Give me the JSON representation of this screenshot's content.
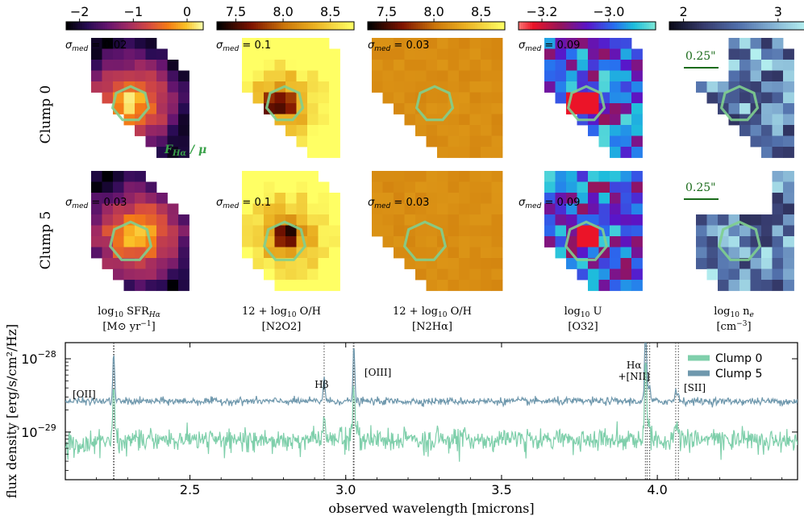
{
  "figure": {
    "row_labels": [
      "Clump 0",
      "Clump 5"
    ],
    "flux_annotation": "F",
    "flux_annotation_sub": "Hα",
    "flux_annotation_tail": " / μ",
    "scale_bar_label": "0.25\"",
    "colorbars": [
      {
        "ticks": [
          {
            "v": -2,
            "t": "−2"
          },
          {
            "v": -1,
            "t": "−1"
          },
          {
            "v": 0,
            "t": "0"
          }
        ],
        "range": [
          -2.25,
          0.3
        ],
        "cmap": "inferno"
      },
      {
        "ticks": [
          {
            "v": 7.5,
            "t": "7.5"
          },
          {
            "v": 8.0,
            "t": "8.0"
          },
          {
            "v": 8.5,
            "t": "8.5"
          }
        ],
        "range": [
          7.3,
          8.75
        ],
        "cmap": "afmhot"
      },
      {
        "ticks": [
          {
            "v": 7.5,
            "t": "7.5"
          },
          {
            "v": 8.0,
            "t": "8.0"
          },
          {
            "v": 8.5,
            "t": "8.5"
          }
        ],
        "range": [
          7.3,
          8.75
        ],
        "cmap": "afmhot"
      },
      {
        "ticks": [
          {
            "v": -3.2,
            "t": "−3.2"
          },
          {
            "v": -3.0,
            "t": "−3.0"
          }
        ],
        "range": [
          -3.27,
          -2.86
        ],
        "cmap": "rainbow"
      },
      {
        "ticks": [
          {
            "v": 2,
            "t": "2"
          },
          {
            "v": 3,
            "t": "3"
          }
        ],
        "range": [
          1.85,
          3.3
        ],
        "cmap": "ice"
      }
    ],
    "sigma_med": [
      [
        "0.02",
        "0.1",
        "0.03",
        "0.09",
        ""
      ],
      [
        "0.03",
        "0.1",
        "0.03",
        "0.09",
        ""
      ]
    ],
    "sigma_label": "σ",
    "sigma_sub": "med",
    "sigma_eq": " = ",
    "column_labels": [
      {
        "l1": "log",
        "l1sub": "10",
        "l1tail": " SFR",
        "l1sub2": "Hα",
        "l2": "[M⊙ yr",
        "l2sup": "−1",
        "l2tail": "]"
      },
      {
        "l1": "12 + log",
        "l1sub": "10",
        "l1tail": " O/H",
        "l1sub2": "",
        "l2": "[N2O2]",
        "l2sup": "",
        "l2tail": ""
      },
      {
        "l1": "12 + log",
        "l1sub": "10",
        "l1tail": " O/H",
        "l1sub2": "",
        "l2": "[N2Hα]",
        "l2sup": "",
        "l2tail": ""
      },
      {
        "l1": "log",
        "l1sub": "10",
        "l1tail": " U",
        "l1sub2": "",
        "l2": "[O32]",
        "l2sup": "",
        "l2tail": ""
      },
      {
        "l1": "log",
        "l1sub": "10",
        "l1tail": " n",
        "l1sub2": "e",
        "l2": "[cm",
        "l2sup": "−3",
        "l2tail": "]"
      }
    ]
  },
  "chart_data": {
    "type": "line",
    "xlabel": "observed wavelength [microns]",
    "ylabel": "flux density [erg/s/cm²/Hz]",
    "xlim": [
      2.1,
      4.45
    ],
    "ylim_log10": [
      -29.65,
      -27.78
    ],
    "xticks": [
      {
        "v": 2.5,
        "t": "2.5"
      },
      {
        "v": 3.0,
        "t": "3.0"
      },
      {
        "v": 3.5,
        "t": "3.5"
      },
      {
        "v": 4.0,
        "t": "4.0"
      }
    ],
    "yticks": [
      {
        "v": -28,
        "t": "10",
        "sup": "−28"
      },
      {
        "v": -29,
        "t": "10",
        "sup": "−29"
      }
    ],
    "series": [
      {
        "name": "Clump 0",
        "color": "#7fcfab",
        "continuum_log10": -29.1
      },
      {
        "name": "Clump 5",
        "color": "#6f98ad",
        "continuum_log10": -28.58
      }
    ],
    "emission_lines": [
      {
        "label": "[OII]",
        "wavelengths": [
          2.2547,
          2.2563
        ]
      },
      {
        "label": "Hβ",
        "wavelengths": [
          2.9306
        ]
      },
      {
        "label": "[OIII]",
        "wavelengths": [
          3.0265,
          3.0244
        ]
      },
      {
        "label": "Hα",
        "label2": "+[NII]",
        "wavelengths": [
          3.9617,
          3.9755,
          3.9672
        ]
      },
      {
        "label": "[SII]",
        "wavelengths": [
          4.0589,
          4.0676
        ]
      }
    ],
    "legend_position": "top-right"
  }
}
